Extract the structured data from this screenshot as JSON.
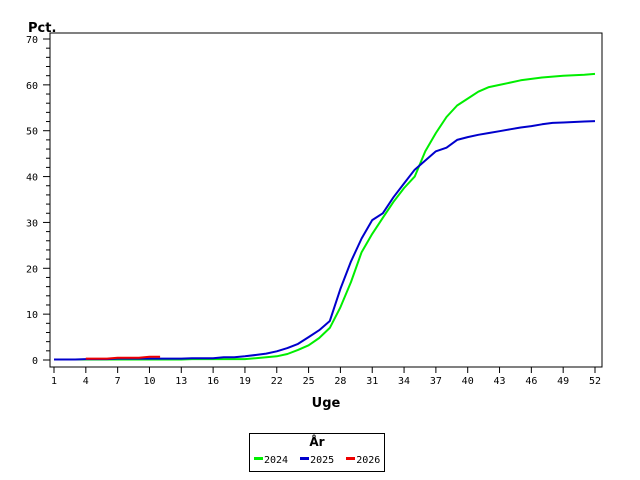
{
  "chart_data": {
    "type": "line",
    "title": "",
    "xlabel": "Uge",
    "ylabel": "Pct.",
    "ylim": [
      0,
      70
    ],
    "xlim": [
      1,
      52
    ],
    "y_ticks": [
      0,
      10,
      20,
      30,
      40,
      50,
      60,
      70
    ],
    "x_ticks": [
      1,
      4,
      7,
      10,
      13,
      16,
      19,
      22,
      25,
      28,
      31,
      34,
      37,
      40,
      43,
      46,
      49,
      52
    ],
    "grid": false,
    "legend": {
      "title": "År",
      "position": "bottom-center"
    },
    "series": [
      {
        "name": "2024",
        "color": "#00ee00",
        "x": [
          1,
          2,
          3,
          4,
          5,
          6,
          7,
          8,
          9,
          10,
          11,
          12,
          13,
          14,
          15,
          16,
          17,
          18,
          19,
          20,
          21,
          22,
          23,
          24,
          25,
          26,
          27,
          28,
          29,
          30,
          31,
          32,
          33,
          34,
          35,
          36,
          37,
          38,
          39,
          40,
          41,
          42,
          43,
          44,
          45,
          46,
          47,
          48,
          49,
          50,
          51,
          52
        ],
        "values": [
          0.1,
          0.1,
          0.1,
          0.1,
          0.1,
          0.1,
          0.1,
          0.1,
          0.1,
          0.1,
          0.1,
          0.1,
          0.1,
          0.2,
          0.2,
          0.2,
          0.2,
          0.2,
          0.2,
          0.4,
          0.6,
          0.8,
          1.3,
          2.2,
          3.2,
          4.8,
          7.0,
          11.5,
          17.0,
          23.5,
          27.5,
          31.0,
          34.5,
          37.5,
          40.0,
          45.5,
          49.5,
          53.0,
          55.5,
          57.0,
          58.5,
          59.5,
          60.0,
          60.5,
          61.0,
          61.3,
          61.6,
          61.8,
          62.0,
          62.1,
          62.2,
          62.4
        ]
      },
      {
        "name": "2025",
        "color": "#0000cc",
        "x": [
          1,
          2,
          3,
          4,
          5,
          6,
          7,
          8,
          9,
          10,
          11,
          12,
          13,
          14,
          15,
          16,
          17,
          18,
          19,
          20,
          21,
          22,
          23,
          24,
          25,
          26,
          27,
          28,
          29,
          30,
          31,
          32,
          33,
          34,
          35,
          36,
          37,
          38,
          39,
          40,
          41,
          42,
          43,
          44,
          45,
          46,
          47,
          48,
          49,
          50,
          51,
          52
        ],
        "values": [
          0.1,
          0.1,
          0.1,
          0.2,
          0.2,
          0.2,
          0.3,
          0.3,
          0.3,
          0.3,
          0.3,
          0.3,
          0.3,
          0.4,
          0.4,
          0.4,
          0.6,
          0.6,
          0.8,
          1.1,
          1.4,
          1.9,
          2.6,
          3.5,
          5.0,
          6.5,
          8.5,
          15.5,
          21.5,
          26.5,
          30.5,
          32.0,
          35.5,
          38.5,
          41.5,
          43.5,
          45.5,
          46.3,
          48.0,
          48.6,
          49.1,
          49.5,
          49.9,
          50.3,
          50.7,
          51.0,
          51.4,
          51.7,
          51.8,
          51.9,
          52.0,
          52.1
        ]
      },
      {
        "name": "2026",
        "color": "#ee0000",
        "x": [
          4,
          5,
          6,
          7,
          8,
          9,
          10,
          11
        ],
        "values": [
          0.3,
          0.3,
          0.3,
          0.5,
          0.5,
          0.5,
          0.7,
          0.7
        ]
      }
    ]
  }
}
